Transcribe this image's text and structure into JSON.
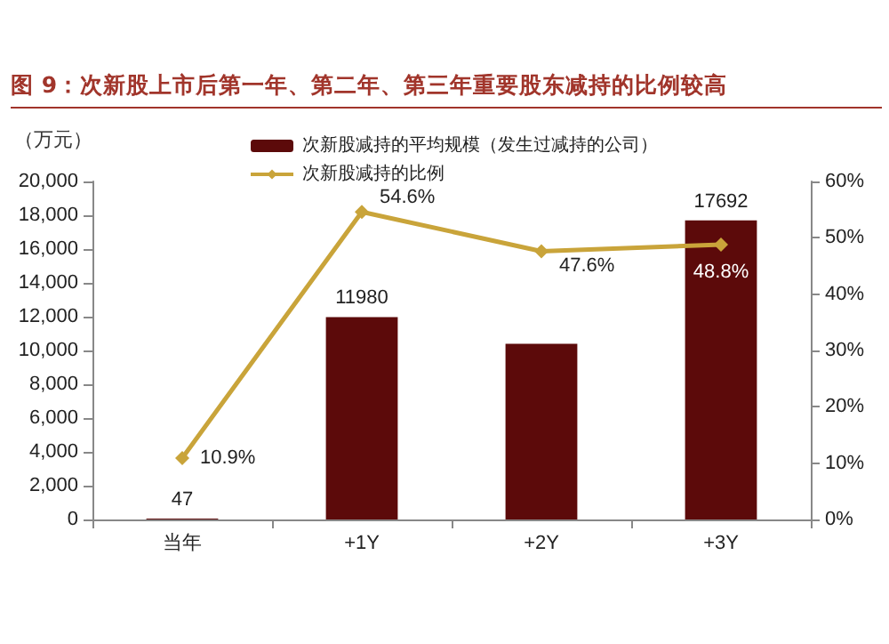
{
  "chart_data": {
    "type": "bar",
    "title": "图 9：次新股上市后第一年、第二年、第三年重要股东减持的比例较高",
    "ylabel": "（万元）",
    "categories": [
      "当年",
      "+1Y",
      "+2Y",
      "+3Y"
    ],
    "series": [
      {
        "name": "次新股减持的平均规模（发生过减持的公司）",
        "color": "#5c0a0a",
        "values": [
          47,
          11980,
          10400,
          17692
        ],
        "value_labels": [
          "47",
          "11980",
          null,
          "17692"
        ]
      },
      {
        "name": "次新股减持的比例",
        "type": "line",
        "axis": "y2",
        "color": "#c9a43a",
        "values": [
          10.9,
          54.6,
          47.6,
          48.8
        ],
        "value_labels": [
          "10.9%",
          "54.6%",
          "47.6%",
          "48.8%"
        ]
      }
    ],
    "ylim": [
      0,
      20000
    ],
    "yticks": [
      {
        "value": 0,
        "label": "0"
      },
      {
        "value": 2000,
        "label": "2,000"
      },
      {
        "value": 4000,
        "label": "4,000"
      },
      {
        "value": 6000,
        "label": "6,000"
      },
      {
        "value": 8000,
        "label": "8,000"
      },
      {
        "value": 10000,
        "label": "10,000"
      },
      {
        "value": 12000,
        "label": "12,000"
      },
      {
        "value": 14000,
        "label": "14,000"
      },
      {
        "value": 16000,
        "label": "16,000"
      },
      {
        "value": 18000,
        "label": "18,000"
      },
      {
        "value": 20000,
        "label": "20,000"
      }
    ],
    "y2lim": [
      0,
      60
    ],
    "y2ticks": [
      {
        "value": 0,
        "label": "0%"
      },
      {
        "value": 10,
        "label": "10%"
      },
      {
        "value": 20,
        "label": "20%"
      },
      {
        "value": 30,
        "label": "30%"
      },
      {
        "value": 40,
        "label": "40%"
      },
      {
        "value": 50,
        "label": "50%"
      },
      {
        "value": 60,
        "label": "60%"
      }
    ],
    "legend": "top",
    "grid": false,
    "marker": "diamond"
  }
}
